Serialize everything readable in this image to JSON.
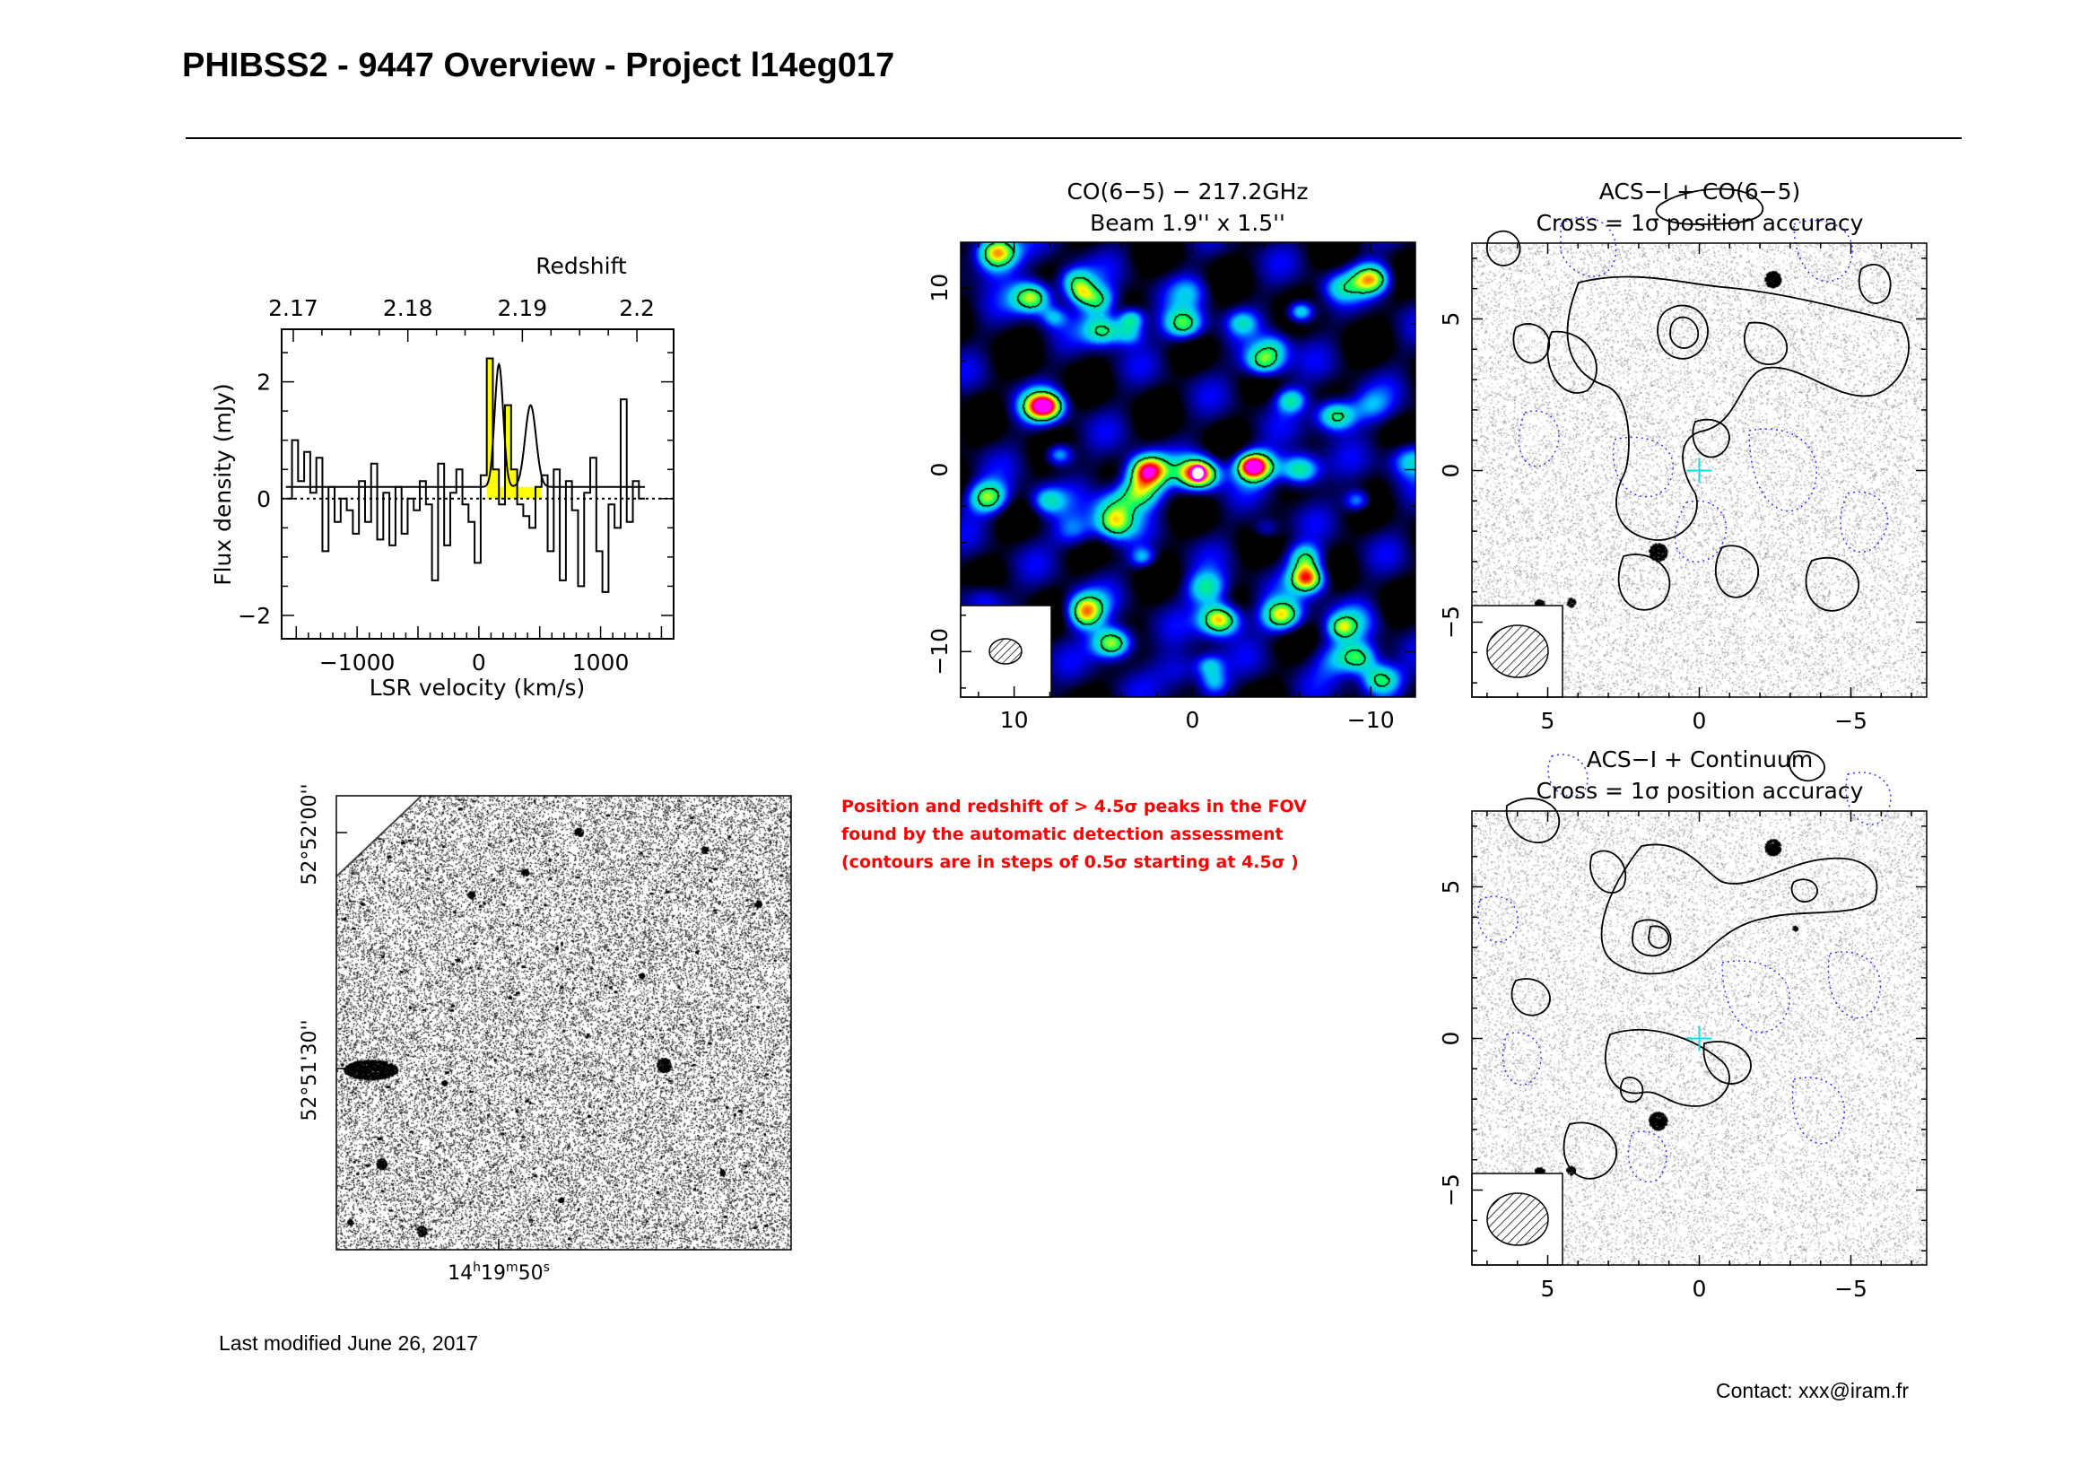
{
  "page": {
    "title": "PHIBSS2 - 9447 Overview - Project l14eg017",
    "last_modified": "Last modified June 26, 2017",
    "contact": "Contact: xxx@iram.fr",
    "note_lines": [
      "Position and redshift of > 4.5σ peaks in the FOV",
      "found by the automatic detection assessment",
      "(contours are in steps of 0.5σ starting at 4.5σ )"
    ],
    "note_color": "#ff0000"
  },
  "chart_data": [
    {
      "type": "line",
      "subtype": "step-spectrum",
      "title": "Redshift",
      "xlabel": "LSR velocity (km/s)",
      "ylabel": "Flux density (mJy)",
      "xlim": [
        -1620,
        1600
      ],
      "ylim": [
        -2.4,
        2.9
      ],
      "x_ticks": [
        -1000,
        0,
        1000
      ],
      "x_tick_labels": [
        "−1000",
        "0",
        "1000"
      ],
      "y_ticks": [
        -2,
        0,
        2
      ],
      "y_tick_labels": [
        "−2",
        "0",
        "2"
      ],
      "top_axis_ticks": [
        "2.17",
        "2.18",
        "2.19",
        "2.2"
      ],
      "top_axis_values": [
        2.17,
        2.18,
        2.19,
        2.2
      ],
      "line_fill_color": "#ffff00",
      "fit_baseline": 0.2,
      "x": [
        -1560,
        -1510,
        -1460,
        -1410,
        -1360,
        -1310,
        -1260,
        -1210,
        -1160,
        -1110,
        -1060,
        -1010,
        -960,
        -910,
        -860,
        -810,
        -760,
        -710,
        -660,
        -610,
        -560,
        -510,
        -460,
        -410,
        -360,
        -310,
        -260,
        -210,
        -160,
        -110,
        -60,
        -10,
        40,
        90,
        140,
        190,
        240,
        290,
        340,
        390,
        440,
        490,
        540,
        590,
        640,
        690,
        740,
        790,
        840,
        890,
        940,
        990,
        1040,
        1090,
        1140,
        1190,
        1240,
        1290,
        1340
      ],
      "y": [
        0.0,
        1.0,
        0.3,
        0.8,
        0.1,
        0.7,
        -0.9,
        0.2,
        -0.4,
        0.0,
        -0.2,
        -0.6,
        0.3,
        -0.4,
        0.6,
        -0.7,
        0.1,
        -0.8,
        0.2,
        -0.6,
        0.0,
        -0.2,
        0.3,
        -0.1,
        -1.4,
        0.6,
        -0.8,
        0.1,
        0.5,
        -0.1,
        -0.4,
        -1.1,
        0.4,
        2.4,
        0.5,
        -0.1,
        1.6,
        0.5,
        -0.1,
        -0.3,
        -0.5,
        0.2,
        0.4,
        -0.9,
        0.5,
        -1.4,
        0.3,
        -0.2,
        -1.5,
        0.1,
        0.7,
        -0.9,
        -1.6,
        -0.1,
        -0.5,
        1.7,
        -0.4,
        0.3,
        0.0
      ],
      "fit": {
        "components": [
          {
            "center": 165,
            "amplitude": 2.1,
            "sigma": 35
          },
          {
            "center": 425,
            "amplitude": 1.4,
            "sigma": 45
          }
        ]
      }
    },
    {
      "type": "heatmap",
      "title": "CO(6−5) − 217.2GHz",
      "subtitle": "Beam 1.9'' x 1.5''",
      "xlim": [
        13,
        -12.5
      ],
      "ylim": [
        -12.5,
        12.5
      ],
      "x_ticks": [
        10,
        0,
        -10
      ],
      "x_tick_labels": [
        "10",
        "0",
        "−10"
      ],
      "y_ticks": [
        10,
        0,
        -10
      ],
      "y_tick_labels": [
        "10",
        "0",
        "−10"
      ],
      "colormap": [
        "#000000",
        "#0000ff",
        "#00c8ff",
        "#00ff60",
        "#ffff00",
        "#ff8000",
        "#ff0000",
        "#ff00ff"
      ],
      "peaks": [
        {
          "x": 11,
          "y": 12,
          "a": 1.0
        },
        {
          "x": 9,
          "y": 9.5,
          "a": 0.9
        },
        {
          "x": 8.5,
          "y": 3.5,
          "a": 1.1
        },
        {
          "x": 2.5,
          "y": 0.0,
          "a": 1.2
        },
        {
          "x": -0.3,
          "y": -0.2,
          "a": 1.3
        },
        {
          "x": -3.5,
          "y": 0.2,
          "a": 1.15
        },
        {
          "x": -6,
          "y": 0.0,
          "a": 0.8
        },
        {
          "x": -8,
          "y": 3,
          "a": 0.85
        },
        {
          "x": -10,
          "y": 10.5,
          "a": 0.95
        },
        {
          "x": -4,
          "y": 6,
          "a": 0.85
        },
        {
          "x": 0.5,
          "y": 8,
          "a": 0.75
        },
        {
          "x": -1.5,
          "y": -8.2,
          "a": 1.1
        },
        {
          "x": -5,
          "y": -8,
          "a": 0.9
        },
        {
          "x": 4.5,
          "y": -9.5,
          "a": 1.0
        },
        {
          "x": 5,
          "y": 7.7,
          "a": 0.7
        },
        {
          "x": 6,
          "y": -7.5,
          "a": 0.7
        },
        {
          "x": 11.5,
          "y": -1.5,
          "a": 0.8
        },
        {
          "x": -10.5,
          "y": -11.5,
          "a": 0.8
        }
      ]
    },
    {
      "type": "heatmap",
      "subtype": "optical-with-contours",
      "title": "ACS−I + CO(6−5)",
      "subtitle": "Cross = 1σ position accuracy",
      "xlim": [
        7.5,
        -7.5
      ],
      "ylim": [
        -7.5,
        7.5
      ],
      "x_ticks": [
        5,
        0,
        -5
      ],
      "x_tick_labels": [
        "5",
        "0",
        "−5"
      ],
      "y_ticks": [
        5,
        0,
        -5
      ],
      "y_tick_labels": [
        "5",
        "0",
        "−5"
      ],
      "cross": {
        "x": 0,
        "y": 0,
        "color": "#00e5e5"
      },
      "negative_contour_color": "#3333ff"
    },
    {
      "type": "heatmap",
      "subtype": "optical-with-contours",
      "title": "ACS−I + Continuum",
      "subtitle": "Cross = 1σ position accuracy",
      "xlim": [
        7.5,
        -7.5
      ],
      "ylim": [
        -7.5,
        7.5
      ],
      "x_ticks": [
        5,
        0,
        -5
      ],
      "x_tick_labels": [
        "5",
        "0",
        "−5"
      ],
      "y_ticks": [
        5,
        0,
        -5
      ],
      "y_tick_labels": [
        "5",
        "0",
        "−5"
      ],
      "cross": {
        "x": 0,
        "y": 0,
        "color": "#00e5e5"
      },
      "negative_contour_color": "#3333ff"
    },
    {
      "type": "heatmap",
      "subtype": "optical-field",
      "x_tick_labels": [
        "14h19m50s"
      ],
      "x_tick_label_parts": {
        "h": "14",
        "m": "19",
        "s": "50"
      },
      "y_tick_labels": [
        "52°52'00''",
        "52°51'30''"
      ]
    }
  ]
}
